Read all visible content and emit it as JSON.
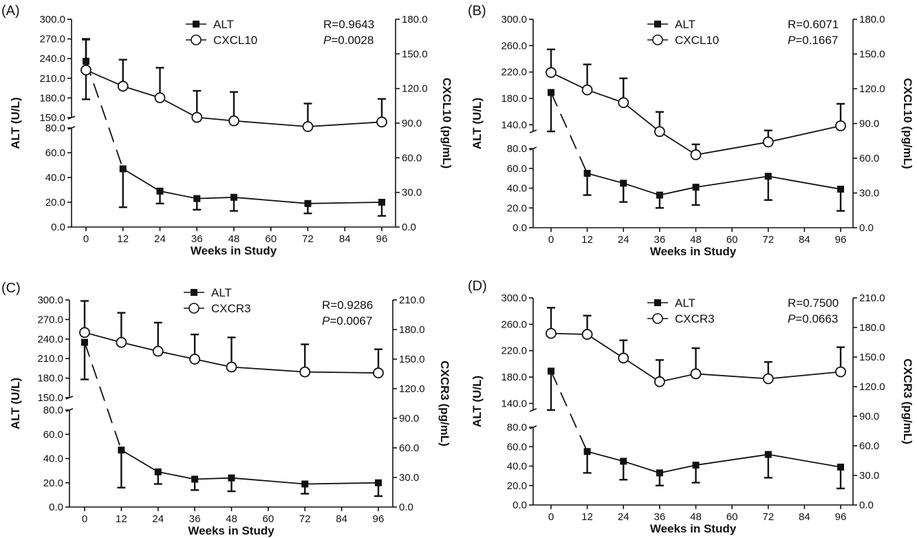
{
  "chart_data": [
    {
      "type": "line",
      "panel_label": "(A)",
      "xlabel": "Weeks in Study",
      "x_ticks": [
        0,
        12,
        24,
        36,
        48,
        60,
        72,
        84,
        96
      ],
      "x": [
        0,
        12,
        24,
        36,
        48,
        72,
        96
      ],
      "ylabel_left": "ALT (U/L)",
      "ylabel_right": "CXCL10 (pg/mL)",
      "left_axis": {
        "lower_ticks": [
          "0.0",
          "20.0",
          "40.0",
          "60.0",
          "80.0"
        ],
        "upper_ticks": [
          "150.0",
          "180.0",
          "210.0",
          "240.0",
          "270.0",
          "300.0"
        ],
        "lower_range": [
          0,
          80
        ],
        "upper_range": [
          150,
          300
        ]
      },
      "right_axis": {
        "ticks": [
          "0.0",
          "30.0",
          "60.0",
          "90.0",
          "120.0",
          "150.0",
          "180.0"
        ],
        "range": [
          0,
          180
        ]
      },
      "series": [
        {
          "name": "ALT",
          "axis": "left",
          "marker": "filled-square",
          "values": [
            236,
            47,
            29,
            23,
            24,
            19,
            20
          ],
          "error_upper": [
            269,
            47,
            29,
            23,
            24,
            19,
            20
          ],
          "error_lower": [
            178,
            16,
            19,
            14,
            13,
            11,
            9
          ]
        },
        {
          "name": "CXCL10",
          "axis": "right",
          "marker": "open-circle",
          "values": [
            136,
            122,
            112,
            95,
            92,
            87,
            91
          ],
          "error_upper": [
            163,
            145,
            138,
            118,
            117,
            107,
            111
          ]
        }
      ],
      "stats": {
        "r": "R=0.9643",
        "p_prefix": "P",
        "p_value": "=0.0028"
      }
    },
    {
      "type": "line",
      "panel_label": "(B)",
      "xlabel": "Weeks in Study",
      "x_ticks": [
        0,
        12,
        24,
        36,
        48,
        60,
        72,
        84,
        96
      ],
      "x": [
        0,
        12,
        24,
        36,
        48,
        72,
        96
      ],
      "ylabel_left": "ALT (U/L)",
      "ylabel_right": "CXCL10 (pg/mL)",
      "left_axis": {
        "lower_ticks": [
          "0.0",
          "20.0",
          "40.0",
          "60.0",
          "80.0"
        ],
        "upper_ticks": [
          "140.0",
          "180.0",
          "220.0",
          "260.0",
          "300.0"
        ],
        "lower_range": [
          0,
          80
        ],
        "upper_range": [
          130,
          300
        ]
      },
      "right_axis": {
        "ticks": [
          "0.0",
          "30.0",
          "60.0",
          "90.0",
          "120.0",
          "150.0",
          "180.0"
        ],
        "range": [
          0,
          180
        ]
      },
      "series": [
        {
          "name": "ALT",
          "axis": "left",
          "marker": "filled-square",
          "values": [
            189,
            55,
            45,
            33,
            41,
            52,
            39
          ],
          "error_upper": [
            189,
            55,
            45,
            33,
            41,
            52,
            39
          ],
          "error_lower": [
            130,
            33,
            26,
            20,
            23,
            28,
            17
          ]
        },
        {
          "name": "CXCL10",
          "axis": "right",
          "marker": "open-circle",
          "values": [
            134,
            119,
            108,
            83,
            63,
            74,
            88
          ],
          "error_upper": [
            154,
            141,
            129,
            100,
            72,
            84,
            107
          ]
        }
      ],
      "stats": {
        "r": "R=0.6071",
        "p_prefix": "P",
        "p_value": "=0.1667"
      }
    },
    {
      "type": "line",
      "panel_label": "(C)",
      "xlabel": "Weeks in Study",
      "x_ticks": [
        0,
        12,
        24,
        36,
        48,
        60,
        72,
        84,
        96
      ],
      "x": [
        0,
        12,
        24,
        36,
        48,
        72,
        96
      ],
      "ylabel_left": "ALT (U/L)",
      "ylabel_right": "CXCR3 (pg/mL)",
      "left_axis": {
        "lower_ticks": [
          "0.0",
          "20.0",
          "40.0",
          "60.0",
          "80.0"
        ],
        "upper_ticks": [
          "150.0",
          "180.0",
          "210.0",
          "240.0",
          "270.0",
          "300.0"
        ],
        "lower_range": [
          0,
          80
        ],
        "upper_range": [
          150,
          300
        ]
      },
      "right_axis": {
        "ticks": [
          "0.0",
          "30.0",
          "60.0",
          "90.0",
          "120.0",
          "150.0",
          "180.0",
          "210.0"
        ],
        "range": [
          0,
          210
        ]
      },
      "series": [
        {
          "name": "ALT",
          "axis": "left",
          "marker": "filled-square",
          "values": [
            235,
            47,
            29,
            23,
            24,
            19,
            20
          ],
          "error_upper": [
            235,
            47,
            29,
            23,
            24,
            19,
            20
          ],
          "error_lower": [
            178,
            16,
            19,
            14,
            13,
            11,
            9
          ]
        },
        {
          "name": "CXCR3",
          "axis": "right",
          "marker": "open-circle",
          "values": [
            177,
            167,
            158,
            150,
            142,
            137,
            136
          ],
          "error_upper": [
            209,
            197,
            187,
            175,
            172,
            165,
            160
          ]
        }
      ],
      "stats": {
        "r": "R=0.9286",
        "p_prefix": "P",
        "p_value": "=0.0067"
      }
    },
    {
      "type": "line",
      "panel_label": "(D)",
      "xlabel": "Weeks in Study",
      "x_ticks": [
        0,
        12,
        24,
        36,
        48,
        60,
        72,
        84,
        96
      ],
      "x": [
        0,
        12,
        24,
        36,
        48,
        72,
        96
      ],
      "ylabel_left": "ALT (U/L)",
      "ylabel_right": "CXCR3 (pg/mL)",
      "left_axis": {
        "lower_ticks": [
          "0.0",
          "20.0",
          "40.0",
          "60.0",
          "80.0"
        ],
        "upper_ticks": [
          "140.0",
          "180.0",
          "220.0",
          "260.0",
          "300.0"
        ],
        "lower_range": [
          0,
          80
        ],
        "upper_range": [
          130,
          300
        ]
      },
      "right_axis": {
        "ticks": [
          "0.0",
          "30.0",
          "60.0",
          "90.0",
          "120.0",
          "150.0",
          "180.0",
          "210.0"
        ],
        "range": [
          0,
          210
        ]
      },
      "series": [
        {
          "name": "ALT",
          "axis": "left",
          "marker": "filled-square",
          "values": [
            189,
            55,
            45,
            33,
            41,
            52,
            39
          ],
          "error_upper": [
            189,
            55,
            45,
            33,
            41,
            52,
            39
          ],
          "error_lower": [
            130,
            33,
            26,
            20,
            23,
            28,
            17
          ]
        },
        {
          "name": "CXCR3",
          "axis": "right",
          "marker": "open-circle",
          "values": [
            174,
            173,
            149,
            125,
            133,
            128,
            135
          ],
          "error_upper": [
            200,
            192,
            167,
            147,
            159,
            145,
            160
          ]
        }
      ],
      "stats": {
        "r": "R=0.7500",
        "p_prefix": "P",
        "p_value": "=0.0663"
      }
    }
  ]
}
